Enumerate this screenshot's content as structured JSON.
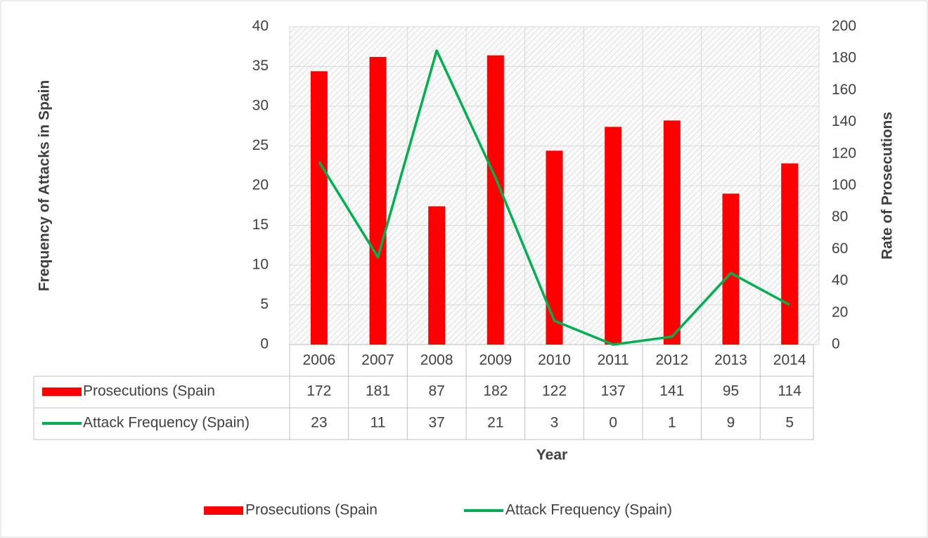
{
  "chart_data": {
    "type": "bar",
    "x_label": "Year",
    "y_label": "Frequency of Attacks in Spain",
    "y2_label": "Rate of Prosecutions",
    "categories": [
      "2006",
      "2007",
      "2008",
      "2009",
      "2010",
      "2011",
      "2012",
      "2013",
      "2014"
    ],
    "series": [
      {
        "name": "Prosecutions (Spain",
        "type": "bar",
        "axis": "y2",
        "color": "#ff0000",
        "values": [
          172,
          181,
          87,
          182,
          122,
          137,
          141,
          95,
          114
        ]
      },
      {
        "name": "Attack Frequency (Spain)",
        "type": "line",
        "color": "#00b050",
        "values": [
          23,
          11,
          37,
          21,
          3,
          0,
          1,
          9,
          5
        ]
      }
    ],
    "ylim": [
      0,
      40
    ],
    "yticks": [
      0,
      5,
      10,
      15,
      20,
      25,
      30,
      35,
      40
    ],
    "y2lim": [
      0,
      200
    ],
    "y2ticks": [
      0,
      20,
      40,
      60,
      80,
      100,
      120,
      140,
      160,
      180,
      200
    ],
    "grid": true,
    "legend": "bottom"
  }
}
